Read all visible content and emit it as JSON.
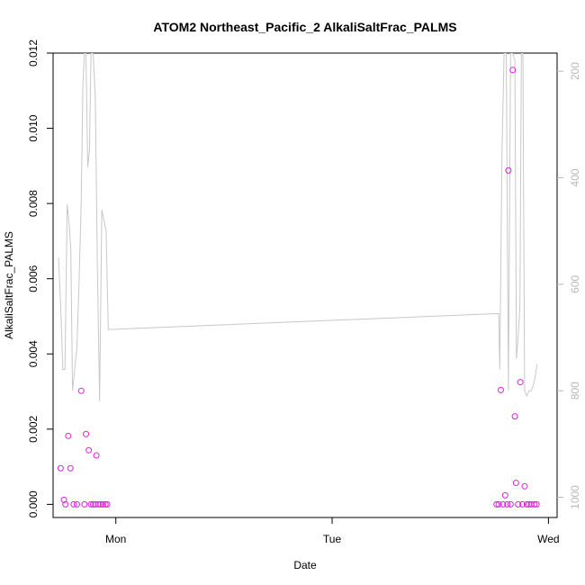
{
  "chart_data": {
    "type": "scatter",
    "title": "ATOM2 Northeast_Pacific_2 AlkaliSaltFrac_PALMS",
    "xlabel": "Date",
    "ylabel": "AlkaliSaltFrac_PALMS",
    "x_ticks": [
      {
        "pos": 1.0,
        "label": "Mon"
      },
      {
        "pos": 2.0,
        "label": "Tue"
      },
      {
        "pos": 3.0,
        "label": "Wed"
      }
    ],
    "x_range": [
      0.71,
      3.04
    ],
    "ylim": [
      -0.00035,
      0.012
    ],
    "y_ticks": [
      0.0,
      0.002,
      0.004,
      0.006,
      0.008,
      0.01,
      0.012
    ],
    "y_tick_labels": [
      "0.000",
      "0.002",
      "0.004",
      "0.006",
      "0.008",
      "0.010",
      "0.012"
    ],
    "y2_range": [
      1038,
      166
    ],
    "y2_ticks": [
      200,
      400,
      600,
      800,
      1000
    ],
    "y2_tick_labels": [
      "200",
      "400",
      "600",
      "800",
      "1000"
    ],
    "colors": {
      "points": "#e020e0",
      "altitude_line": "#c8c8c8",
      "axis": "#000000",
      "right_axis": "#b8b8b8"
    },
    "series": [
      {
        "kind": "points",
        "x": [
          0.745,
          0.76,
          0.767,
          0.78,
          0.79,
          0.805,
          0.82,
          0.84,
          0.855,
          0.862,
          0.875,
          0.885,
          0.895,
          0.905,
          0.91,
          0.92,
          0.93,
          0.94,
          0.952,
          0.96,
          2.76,
          2.77,
          2.78,
          2.79,
          2.8,
          2.81,
          2.815,
          2.825,
          2.835,
          2.845,
          2.85,
          2.86,
          2.87,
          2.88,
          2.89,
          2.9,
          2.91,
          2.92,
          2.935,
          2.945
        ],
        "y": [
          0.00096,
          0.00012,
          0.0,
          0.00182,
          0.00096,
          0.0,
          0.0,
          0.00302,
          0.0,
          0.00187,
          0.00144,
          0.0,
          0.0,
          0.0,
          0.0013,
          0.0,
          0.0,
          0.0,
          0.0,
          0.0,
          0.0,
          0.0,
          0.00304,
          0.0,
          0.00024,
          0.0,
          0.00888,
          0.0,
          0.01155,
          0.00234,
          0.00057,
          0.0,
          0.00325,
          0.0,
          0.00048,
          0.0,
          0.0,
          0.0,
          0.0,
          0.0
        ]
      },
      {
        "kind": "altitude_line",
        "x": [
          0.735,
          0.745,
          0.755,
          0.765,
          0.775,
          0.785,
          0.792,
          0.8,
          0.81,
          0.82,
          0.83,
          0.84,
          0.848,
          0.855,
          0.862,
          0.87,
          0.878,
          0.885,
          0.895,
          0.905,
          0.915,
          0.925,
          0.935,
          0.945,
          0.955,
          0.965,
          2.77,
          2.775,
          2.785,
          2.795,
          2.805,
          2.815,
          2.825,
          2.835,
          2.845,
          2.852,
          2.86,
          2.868,
          2.875,
          2.882,
          2.89,
          2.9,
          2.91,
          2.92,
          2.93,
          2.94,
          2.948
        ],
        "y": [
          550,
          640,
          760,
          760,
          450,
          490,
          535,
          800,
          760,
          720,
          600,
          450,
          220,
          166,
          166,
          380,
          350,
          166,
          166,
          250,
          580,
          820,
          460,
          480,
          500,
          685,
          655,
          760,
          360,
          166,
          166,
          800,
          166,
          166,
          180,
          740,
          700,
          640,
          166,
          166,
          800,
          810,
          800,
          800,
          790,
          770,
          750
        ]
      }
    ]
  }
}
